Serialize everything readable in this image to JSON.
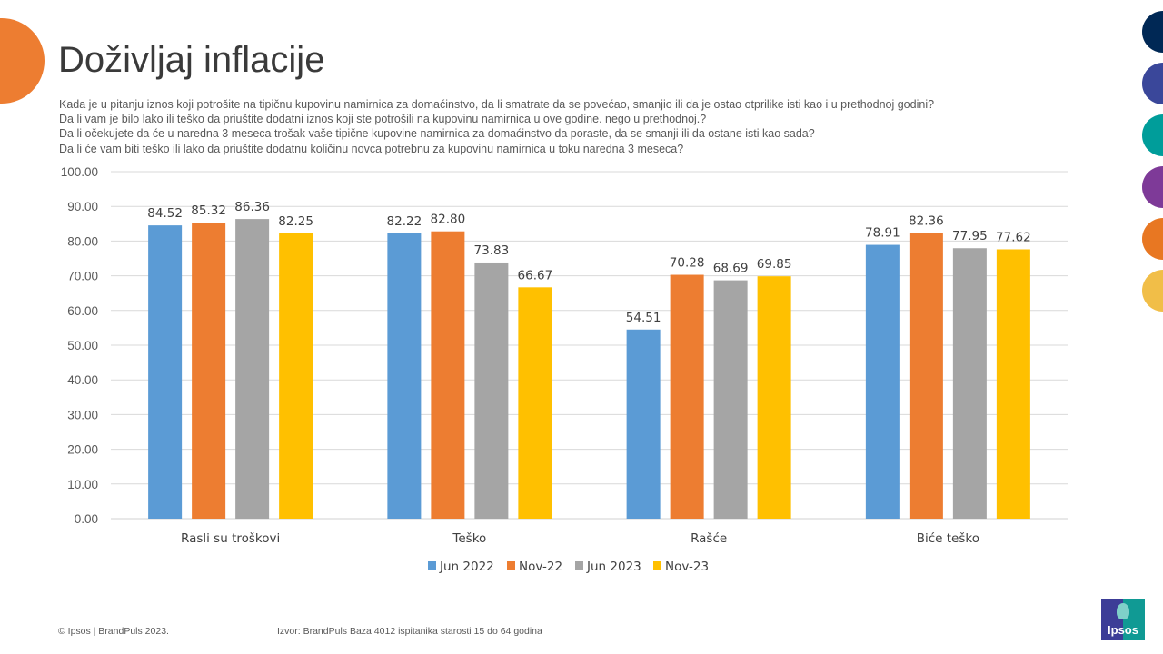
{
  "header": {
    "title": "Doživljaj inflacije",
    "questions": [
      "Kada je u pitanju iznos koji potrošite na tipičnu kupovinu namirnica za domaćinstvo, da li smatrate da se povećao, smanjio ili da je ostao otprilike isti kao i u prethodnoj godini?",
      "Da li vam je bilo lako ili teško da priuštite dodatni iznos koji ste potrošili na kupovinu namirnica u ove godine. nego u prethodnoj.?",
      "Da li očekujete da će u naredna 3 meseca  trošak vaše tipične kupovine namirnica za domaćinstvo da poraste, da se smanji ili da ostane isti kao sada?",
      "Da li će vam biti teško ili lako da priuštite dodatnu količinu novca potrebnu za kupovinu namirnica u toku naredna 3 meseca?"
    ]
  },
  "decor": {
    "left_dot_color": "#ED7D31",
    "side_dots": [
      "#002855",
      "#3A479A",
      "#009D9A",
      "#7E3A98",
      "#E87722",
      "#F1BE48"
    ]
  },
  "footer": {
    "copyright": "© Ipsos | BrandPuls 2023.",
    "source": "Izvor: BrandPuls Baza 4012 ispitanika starosti 15 do 64 godina",
    "logo_text": "Ipsos"
  },
  "chart_data": {
    "type": "bar",
    "title": "",
    "xlabel": "",
    "ylabel": "",
    "ylim": [
      0,
      100
    ],
    "yticks": [
      "0.00",
      "10.00",
      "20.00",
      "30.00",
      "40.00",
      "50.00",
      "60.00",
      "70.00",
      "80.00",
      "90.00",
      "100.00"
    ],
    "grid": true,
    "legend_position": "bottom",
    "categories": [
      "Rasli su troškovi",
      "Teško",
      "Rašće",
      "Biće teško"
    ],
    "series": [
      {
        "name": "Jun 2022",
        "color": "#5B9BD5",
        "values": [
          84.52,
          82.22,
          54.51,
          78.91
        ],
        "labels": [
          "84.52",
          "82.22",
          "54.51",
          "78.91"
        ]
      },
      {
        "name": "Nov-22",
        "color": "#ED7D31",
        "values": [
          85.32,
          82.8,
          70.28,
          82.36
        ],
        "labels": [
          "85.32",
          "82.80",
          "70.28",
          "82.36"
        ]
      },
      {
        "name": "Jun 2023",
        "color": "#A5A5A5",
        "values": [
          86.36,
          73.83,
          68.69,
          77.95
        ],
        "labels": [
          "86.36",
          "73.83",
          "68.69",
          "77.95"
        ]
      },
      {
        "name": "Nov-23",
        "color": "#FFC000",
        "values": [
          82.25,
          66.67,
          69.85,
          77.62
        ],
        "labels": [
          "82.25",
          "66.67",
          "69.85",
          "77.62"
        ]
      }
    ]
  }
}
